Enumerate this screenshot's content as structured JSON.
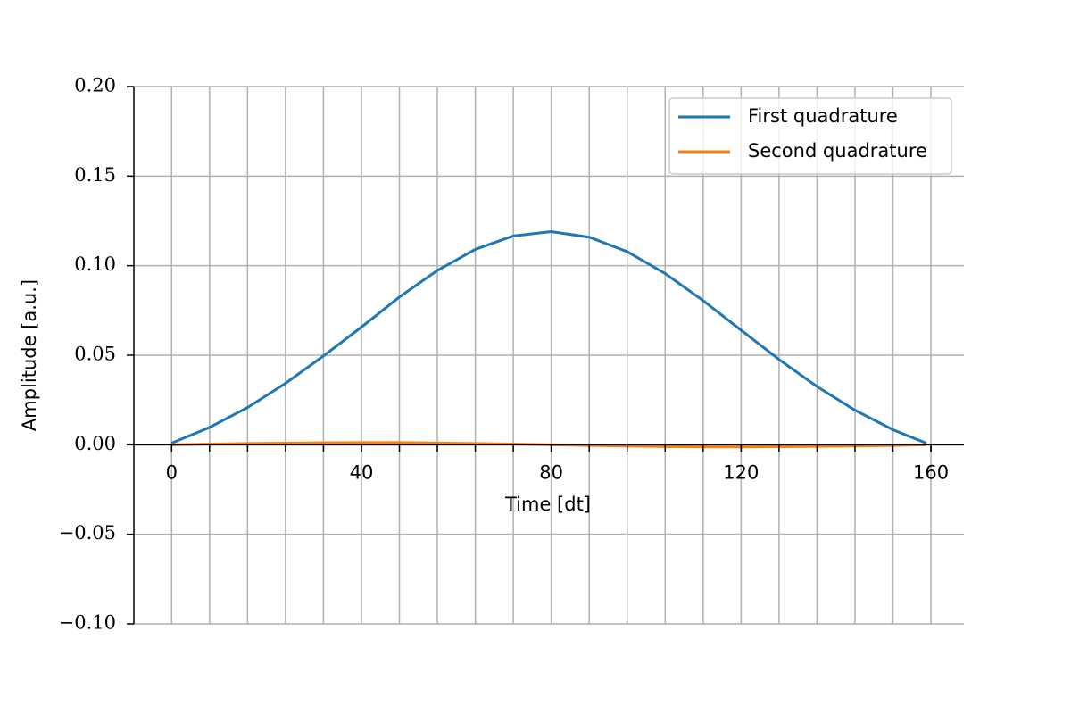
{
  "chart_data": {
    "type": "line",
    "x": [
      0,
      8,
      16,
      24,
      32,
      40,
      48,
      56,
      64,
      72,
      80,
      88,
      96,
      104,
      112,
      120,
      128,
      136,
      144,
      152,
      159
    ],
    "series": [
      {
        "name": "First quadrature",
        "color": "#1f77b4",
        "values": [
          0.0009,
          0.0097,
          0.0208,
          0.0343,
          0.0496,
          0.0657,
          0.0825,
          0.0973,
          0.1091,
          0.1166,
          0.119,
          0.1159,
          0.1078,
          0.0956,
          0.0805,
          0.064,
          0.0476,
          0.0325,
          0.0193,
          0.0084,
          0.0009
        ]
      },
      {
        "name": "Second quadrature",
        "color": "#ff7f0e",
        "values": [
          0,
          0.0004,
          0.0007,
          0.0009,
          0.0011,
          0.0012,
          0.0012,
          0.001,
          0.0007,
          0.0004,
          0,
          -0.0004,
          -0.0007,
          -0.001,
          -0.0012,
          -0.0012,
          -0.0011,
          -0.0009,
          -0.0007,
          -0.0004,
          0
        ]
      }
    ],
    "xlabel": "Time [dt]",
    "ylabel": "Amplitude [a.u.]",
    "xlim": [
      -7.95,
      166.95
    ],
    "xticks": [
      0,
      40,
      80,
      120,
      160
    ],
    "xminor_ticks": [
      0,
      8,
      16,
      24,
      32,
      40,
      48,
      56,
      64,
      72,
      80,
      88,
      96,
      104,
      112,
      120,
      128,
      136,
      144,
      152,
      160
    ],
    "ylim": [
      -0.1,
      0.2
    ],
    "yticks": [
      {
        "value": -0.1,
        "label": "−0.10"
      },
      {
        "value": -0.05,
        "label": "−0.05"
      },
      {
        "value": 0,
        "label": "0.00"
      },
      {
        "value": 0.05,
        "label": "0.05"
      },
      {
        "value": 0.1,
        "label": "0.10"
      },
      {
        "value": 0.15,
        "label": "0.15"
      },
      {
        "value": 0.2,
        "label": "0.20"
      }
    ],
    "grid": true,
    "legend": "upper right"
  }
}
